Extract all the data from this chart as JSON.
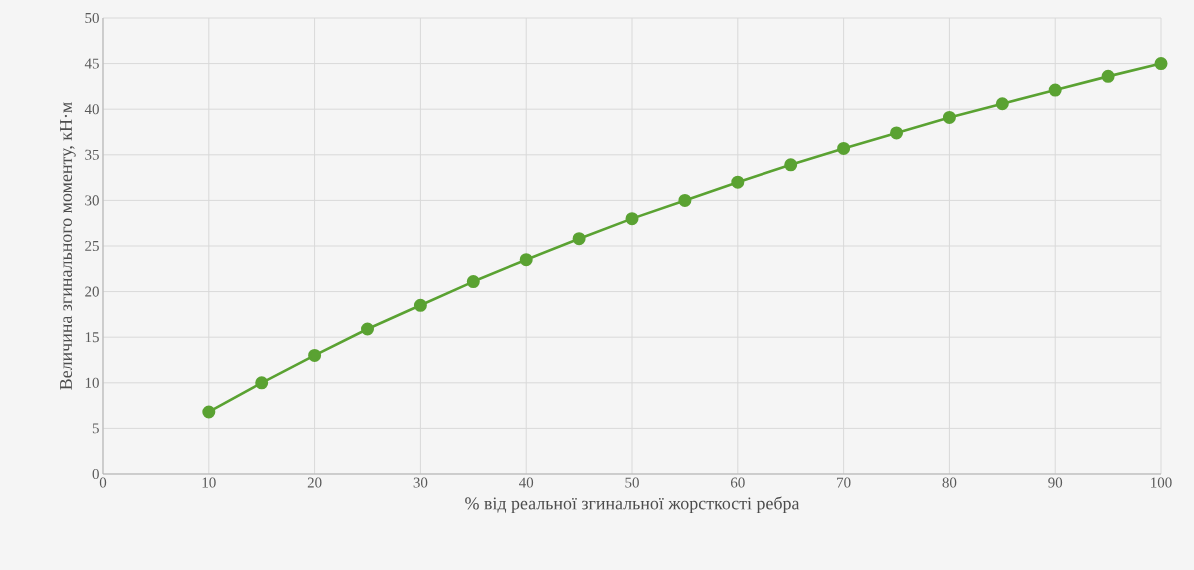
{
  "chart_data": {
    "type": "line",
    "xlabel": "% від реальної згинальної жорсткості ребра",
    "ylabel": "Величина згинального моменту, кН·м",
    "x": [
      10,
      15,
      20,
      25,
      30,
      35,
      40,
      45,
      50,
      55,
      60,
      65,
      70,
      75,
      80,
      85,
      90,
      95,
      100
    ],
    "series": [
      {
        "color": "#5aa232",
        "values": [
          6.8,
          10.0,
          13.0,
          15.9,
          18.5,
          21.1,
          23.5,
          25.8,
          28.0,
          30.0,
          32.0,
          33.9,
          35.7,
          37.4,
          39.1,
          40.6,
          42.1,
          43.6,
          45.0
        ]
      }
    ],
    "xlim": [
      0,
      100
    ],
    "ylim": [
      0,
      50
    ],
    "xticks": [
      0,
      10,
      20,
      30,
      40,
      50,
      60,
      70,
      80,
      90,
      100
    ],
    "yticks": [
      0,
      5,
      10,
      15,
      20,
      25,
      30,
      35,
      40,
      45,
      50
    ],
    "grid": true,
    "marker": "circle",
    "line_style": "solid"
  }
}
